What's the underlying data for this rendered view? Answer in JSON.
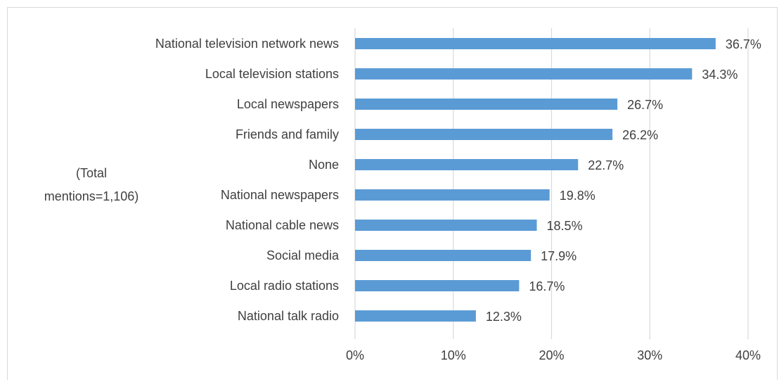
{
  "chart_data": {
    "type": "bar",
    "orientation": "horizontal",
    "categories": [
      "National television network news",
      "Local television stations",
      "Local newspapers",
      "Friends and family",
      "None",
      "National newspapers",
      "National cable news",
      "Social media",
      "Local radio stations",
      "National talk radio"
    ],
    "values": [
      36.7,
      34.3,
      26.7,
      26.2,
      22.7,
      19.8,
      18.5,
      17.9,
      16.7,
      12.3
    ],
    "value_labels": [
      "36.7%",
      "34.3%",
      "26.7%",
      "26.2%",
      "22.7%",
      "19.8%",
      "18.5%",
      "17.9%",
      "16.7%",
      "12.3%"
    ],
    "x_ticks": [
      "0%",
      "10%",
      "20%",
      "30%",
      "40%"
    ],
    "xlim": [
      0,
      40
    ],
    "annotation_lines": [
      "(Total",
      "mentions=1,106)"
    ],
    "bar_color": "#5b9bd5",
    "grid": true,
    "legend": "none"
  }
}
